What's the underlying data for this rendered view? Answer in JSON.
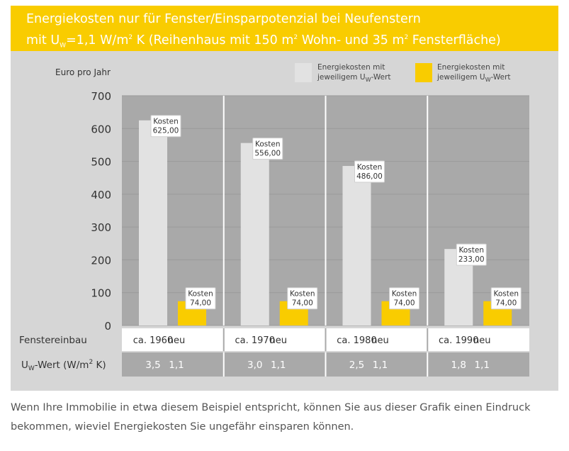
{
  "title": {
    "line1": "Energiekosten nur für Fenster/Einsparpotenzial bei Neufenstern",
    "line2_prefix": "mit U",
    "line2_sub": "W",
    "line2_mid": "=1,1 W/m",
    "line2_sup1": "2",
    "line2_mid2": " K (Reihenhaus mit 150 m",
    "line2_sup2": "2",
    "line2_mid3": " Wohn- und 35 m",
    "line2_sup3": "2",
    "line2_suffix": " Fensterfläche)"
  },
  "caption": {
    "line1": "Wenn Ihre Immobilie in etwa diesem Beispiel entspricht, können Sie aus dieser Grafik einen Eindruck",
    "line2": "bekommen, wieviel Energiekosten Sie ungefähr einsparen können."
  },
  "colors": {
    "title_bg": "#f9cc00",
    "panel_bg": "#d6d6d6",
    "plot_bg": "#a9a9a9",
    "old_bar": "#e2e2e2",
    "new_bar": "#f9cc00",
    "row_bg": "#a9a9a9"
  },
  "chart_data": {
    "type": "bar",
    "ylabel": "Euro pro Jahr",
    "ylim": [
      0,
      700
    ],
    "yticks": [
      "0",
      "100",
      "200",
      "300",
      "400",
      "500",
      "600",
      "700"
    ],
    "legend": {
      "placement": "top-right",
      "old": {
        "line1": "Energiekosten mit",
        "line2_prefix": "jeweiligem U",
        "line2_sub": "W",
        "line2_suffix": "-Wert"
      },
      "new": {
        "line1": "Energiekosten mit",
        "line2_prefix": "jeweiligem U",
        "line2_sub": "W",
        "line2_suffix": "-Wert"
      }
    },
    "row_labels": {
      "install": "Fenstereinbau",
      "uw_prefix": "U",
      "uw_sub": "W",
      "uw_suffix": "-Wert (W/m",
      "uw_sup": "2",
      "uw_end": " K)"
    },
    "label_word": "Kosten",
    "groups": [
      {
        "old_label": "ca. 1960",
        "new_label": "neu",
        "old_value": 625,
        "new_value": 74,
        "old_value_label": "625,00",
        "new_value_label": "74,00",
        "old_uw": "3,5",
        "new_uw": "1,1"
      },
      {
        "old_label": "ca. 1970",
        "new_label": "neu",
        "old_value": 556,
        "new_value": 74,
        "old_value_label": "556,00",
        "new_value_label": "74,00",
        "old_uw": "3,0",
        "new_uw": "1,1"
      },
      {
        "old_label": "ca. 1980",
        "new_label": "neu",
        "old_value": 486,
        "new_value": 74,
        "old_value_label": "486,00",
        "new_value_label": "74,00",
        "old_uw": "2,5",
        "new_uw": "1,1"
      },
      {
        "old_label": "ca. 1990",
        "new_label": "neu",
        "old_value": 233,
        "new_value": 74,
        "old_value_label": "233,00",
        "new_value_label": "74,00",
        "old_uw": "1,8",
        "new_uw": "1,1"
      }
    ]
  }
}
